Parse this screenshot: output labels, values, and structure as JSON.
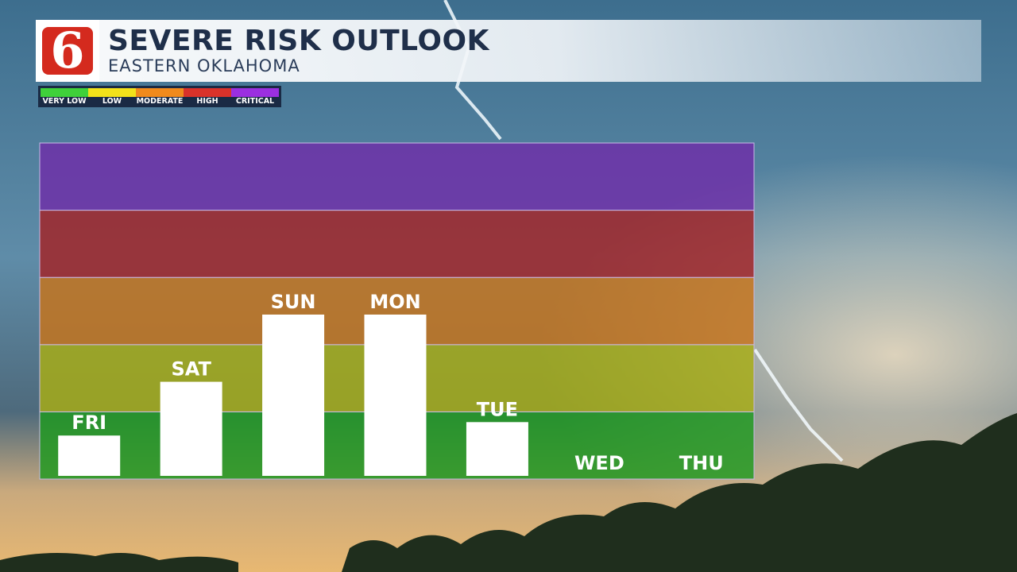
{
  "header": {
    "logo_text": "6",
    "title": "SEVERE RISK OUTLOOK",
    "subtitle": "EASTERN OKLAHOMA"
  },
  "legend": {
    "items": [
      {
        "label": "VERY LOW",
        "color": "#3fd13a"
      },
      {
        "label": "LOW",
        "color": "#f2e21a"
      },
      {
        "label": "MODERATE",
        "color": "#f08a1c"
      },
      {
        "label": "HIGH",
        "color": "#d9322a"
      },
      {
        "label": "CRITICAL",
        "color": "#9b2fe0"
      }
    ]
  },
  "chart_data": {
    "type": "bar",
    "categories": [
      "FRI",
      "SAT",
      "SUN",
      "MON",
      "TUE",
      "WED",
      "THU"
    ],
    "values": [
      0.6,
      1.4,
      2.4,
      2.4,
      0.8,
      0,
      0
    ],
    "ylim": [
      0,
      5
    ],
    "risk_levels": [
      {
        "level": "VERY LOW",
        "color": "#1f9a1f"
      },
      {
        "level": "LOW",
        "color": "#a8ad14"
      },
      {
        "level": "MODERATE",
        "color": "#c8741a"
      },
      {
        "level": "HIGH",
        "color": "#a42225"
      },
      {
        "level": "CRITICAL",
        "color": "#6f2da8"
      }
    ],
    "bar_color": "#ffffff",
    "grid": false
  }
}
